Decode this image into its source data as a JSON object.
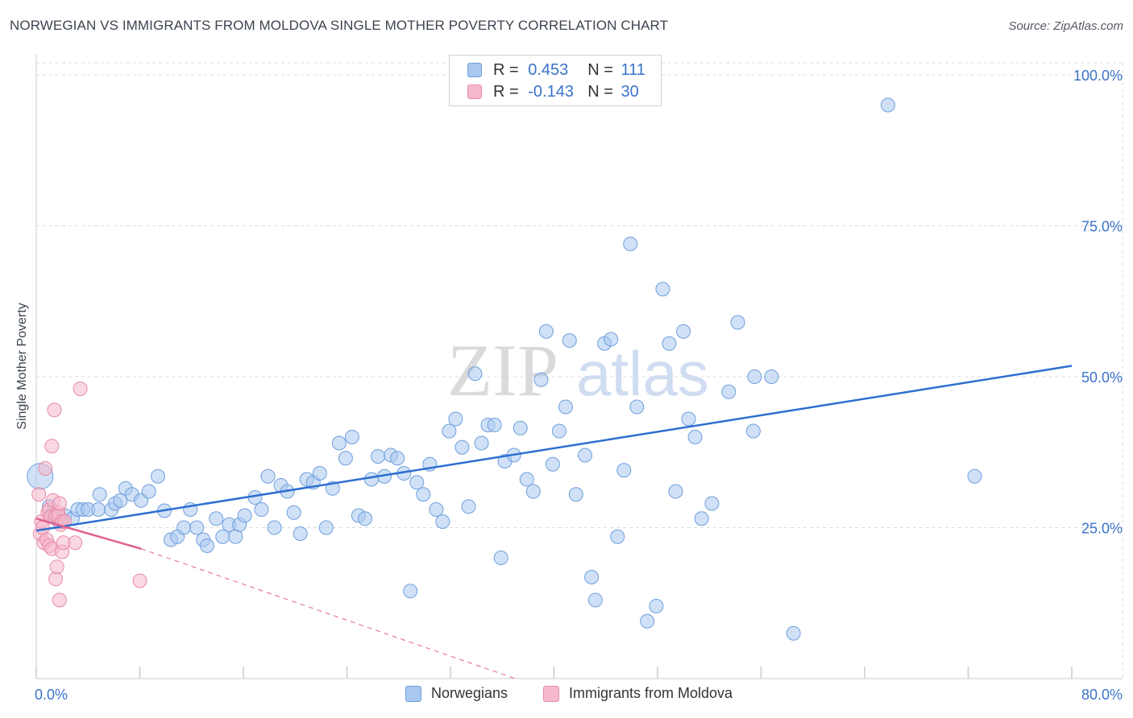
{
  "header": {
    "title": "NORWEGIAN VS IMMIGRANTS FROM MOLDOVA SINGLE MOTHER POVERTY CORRELATION CHART",
    "source": "Source: ZipAtlas.com"
  },
  "watermark": {
    "zip": "ZIP",
    "atlas": "atlas"
  },
  "legend": {
    "r_label": "R =",
    "n_label": "N =",
    "norwegians": {
      "r": "0.453",
      "n": "111"
    },
    "moldova": {
      "r": "-0.143",
      "n": "30"
    }
  },
  "colors": {
    "blue_fill": "#a9c8f0",
    "blue_stroke": "#6f9fdc",
    "blue_line": "#2e6fd0",
    "pink_fill": "#f6b8cb",
    "pink_stroke": "#e78aa8",
    "pink_line": "#e06290",
    "axis_text": "#3b73c9"
  },
  "chart_data": {
    "type": "scatter",
    "title": "NORWEGIAN VS IMMIGRANTS FROM MOLDOVA SINGLE MOTHER POVERTY CORRELATION CHART",
    "xlabel": "",
    "ylabel": "Single Mother Poverty",
    "xlim": [
      0,
      80
    ],
    "ylim": [
      0,
      102
    ],
    "x_tick_labels": [
      "0.0%",
      "80.0%"
    ],
    "y_ticks": [
      25,
      50,
      75,
      100
    ],
    "y_tick_labels": [
      "25.0%",
      "50.0%",
      "75.0%",
      "100.0%"
    ],
    "grid": true,
    "legend_position": "bottom-center",
    "series": [
      {
        "name": "Norwegians",
        "r": 0.453,
        "n": 111,
        "trend": {
          "x": [
            0,
            80
          ],
          "y": [
            24.5,
            51.8
          ],
          "style": "solid"
        },
        "points": [
          [
            0.3,
            33.5
          ],
          [
            1.0,
            28.5
          ],
          [
            1.2,
            27.0
          ],
          [
            1.5,
            26.5
          ],
          [
            1.8,
            26.0
          ],
          [
            2.2,
            27.0
          ],
          [
            2.8,
            26.5
          ],
          [
            3.2,
            28.0
          ],
          [
            3.6,
            28.0
          ],
          [
            4.0,
            28.0
          ],
          [
            4.8,
            28.0
          ],
          [
            4.9,
            30.5
          ],
          [
            5.8,
            28.0
          ],
          [
            6.1,
            29.0
          ],
          [
            6.5,
            29.5
          ],
          [
            6.9,
            31.5
          ],
          [
            7.4,
            30.5
          ],
          [
            8.1,
            29.5
          ],
          [
            8.7,
            31.0
          ],
          [
            9.4,
            33.5
          ],
          [
            9.9,
            27.8
          ],
          [
            10.4,
            23.0
          ],
          [
            10.9,
            23.5
          ],
          [
            11.4,
            25.0
          ],
          [
            11.9,
            28.0
          ],
          [
            12.4,
            25.0
          ],
          [
            12.9,
            23.0
          ],
          [
            13.2,
            22.0
          ],
          [
            13.9,
            26.5
          ],
          [
            14.4,
            23.5
          ],
          [
            14.9,
            25.5
          ],
          [
            15.4,
            23.5
          ],
          [
            15.7,
            25.5
          ],
          [
            16.1,
            27.0
          ],
          [
            16.9,
            30.0
          ],
          [
            17.4,
            28.0
          ],
          [
            17.9,
            33.5
          ],
          [
            18.4,
            25.0
          ],
          [
            18.9,
            32.0
          ],
          [
            19.4,
            31.0
          ],
          [
            19.9,
            27.5
          ],
          [
            20.4,
            24.0
          ],
          [
            20.9,
            33.0
          ],
          [
            21.4,
            32.5
          ],
          [
            21.9,
            34.0
          ],
          [
            22.4,
            25.0
          ],
          [
            22.9,
            31.5
          ],
          [
            23.4,
            39.0
          ],
          [
            23.9,
            36.5
          ],
          [
            24.4,
            40.0
          ],
          [
            24.9,
            27.0
          ],
          [
            25.4,
            26.5
          ],
          [
            25.9,
            33.0
          ],
          [
            26.4,
            36.8
          ],
          [
            26.9,
            33.5
          ],
          [
            27.4,
            37.0
          ],
          [
            27.9,
            36.5
          ],
          [
            28.4,
            34.0
          ],
          [
            28.9,
            14.5
          ],
          [
            29.4,
            32.5
          ],
          [
            29.9,
            30.5
          ],
          [
            30.4,
            35.5
          ],
          [
            30.9,
            28.0
          ],
          [
            31.4,
            26.0
          ],
          [
            31.9,
            41.0
          ],
          [
            32.4,
            43.0
          ],
          [
            32.9,
            38.3
          ],
          [
            33.4,
            28.5
          ],
          [
            33.9,
            50.5
          ],
          [
            34.4,
            39.0
          ],
          [
            34.9,
            42.0
          ],
          [
            35.4,
            42.0
          ],
          [
            35.9,
            20.0
          ],
          [
            36.2,
            36.0
          ],
          [
            36.9,
            37.0
          ],
          [
            37.4,
            41.5
          ],
          [
            37.9,
            33.0
          ],
          [
            38.4,
            31.0
          ],
          [
            39.0,
            49.5
          ],
          [
            39.4,
            57.5
          ],
          [
            39.9,
            35.5
          ],
          [
            40.4,
            41.0
          ],
          [
            40.9,
            45.0
          ],
          [
            41.2,
            56.0
          ],
          [
            41.7,
            30.5
          ],
          [
            42.4,
            37.0
          ],
          [
            42.9,
            16.8
          ],
          [
            43.2,
            13.0
          ],
          [
            43.9,
            55.5
          ],
          [
            44.4,
            56.2
          ],
          [
            44.9,
            23.5
          ],
          [
            45.4,
            34.5
          ],
          [
            45.9,
            72.0
          ],
          [
            46.4,
            45.0
          ],
          [
            47.2,
            9.5
          ],
          [
            47.9,
            12.0
          ],
          [
            48.4,
            64.5
          ],
          [
            48.9,
            55.5
          ],
          [
            49.4,
            31.0
          ],
          [
            50.0,
            57.5
          ],
          [
            50.4,
            43.0
          ],
          [
            50.9,
            40.0
          ],
          [
            51.4,
            26.5
          ],
          [
            52.2,
            29.0
          ],
          [
            53.5,
            47.5
          ],
          [
            54.2,
            59.0
          ],
          [
            55.4,
            41.0
          ],
          [
            55.5,
            50.0
          ],
          [
            56.8,
            50.0
          ],
          [
            58.5,
            7.5
          ],
          [
            65.8,
            95.0
          ],
          [
            72.5,
            33.5
          ]
        ]
      },
      {
        "name": "Immigrants from Moldova",
        "r": -0.143,
        "n": 30,
        "trend": {
          "x": [
            0,
            8.1,
            37
          ],
          "y": [
            26.5,
            21.5,
            0
          ],
          "style": "solid-then-dashed"
        },
        "points": [
          [
            0.2,
            30.5
          ],
          [
            0.3,
            24.0
          ],
          [
            0.4,
            26.0
          ],
          [
            0.5,
            25.0
          ],
          [
            0.6,
            22.5
          ],
          [
            0.7,
            34.8
          ],
          [
            0.8,
            23.0
          ],
          [
            0.9,
            27.5
          ],
          [
            1.0,
            28.0
          ],
          [
            1.0,
            22.0
          ],
          [
            1.1,
            26.8
          ],
          [
            1.2,
            38.5
          ],
          [
            1.2,
            21.5
          ],
          [
            1.3,
            29.5
          ],
          [
            1.4,
            44.5
          ],
          [
            1.5,
            27.0
          ],
          [
            1.5,
            16.5
          ],
          [
            1.6,
            18.5
          ],
          [
            1.7,
            27.5
          ],
          [
            1.7,
            27.0
          ],
          [
            1.8,
            29.0
          ],
          [
            1.8,
            13.0
          ],
          [
            1.9,
            25.5
          ],
          [
            2.0,
            26.0
          ],
          [
            2.0,
            21.0
          ],
          [
            2.1,
            22.5
          ],
          [
            2.2,
            26.0
          ],
          [
            3.0,
            22.5
          ],
          [
            3.4,
            48.0
          ],
          [
            8.0,
            16.2
          ]
        ]
      }
    ]
  }
}
